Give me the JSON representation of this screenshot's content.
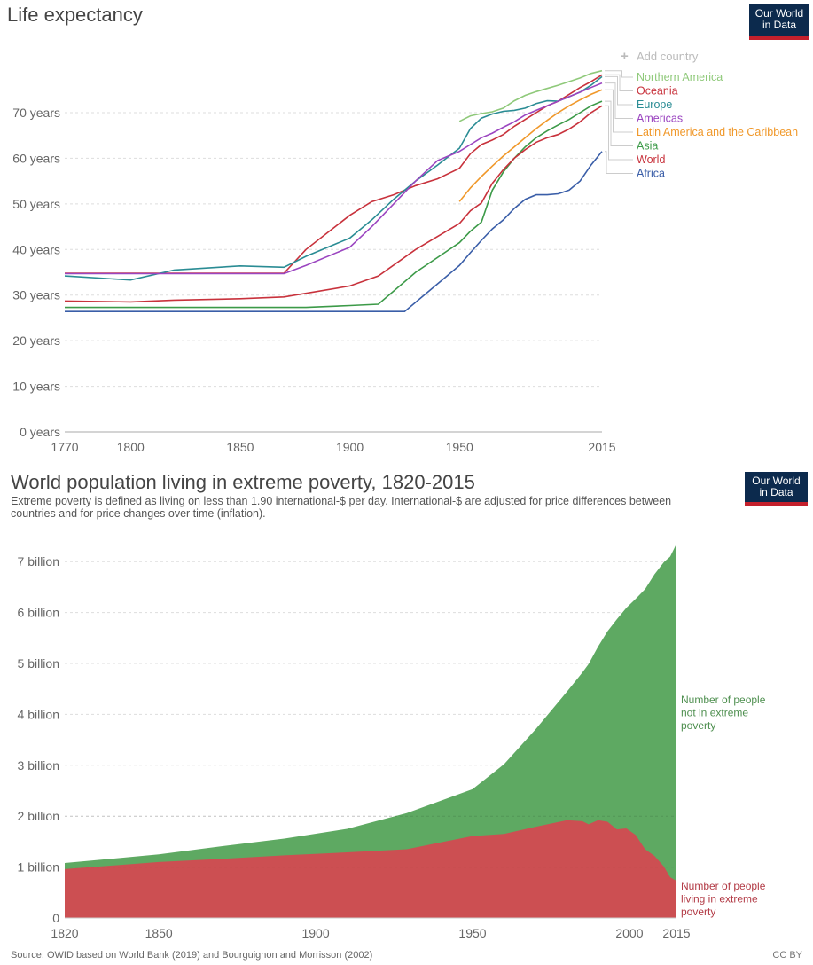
{
  "header": {
    "logo_line1": "Our World",
    "logo_line2": "in Data"
  },
  "add_country_label": "Add country",
  "source": "Source: OWID based on World Bank (2019) and Bourguignon and Morrisson (2002)",
  "license": "CC BY",
  "colors": {
    "logo_bg": "#0c2a4d",
    "logo_accent": "#c4202c",
    "poverty_red": "#cc4f52",
    "not_poverty_green": "#5ea962"
  },
  "chart_data": [
    {
      "type": "line",
      "title": "Life expectancy",
      "xlabel": "",
      "ylabel": "",
      "x_ticks": [
        1770,
        1800,
        1850,
        1900,
        1950,
        2015
      ],
      "x_tick_labels": [
        "1770",
        "1800",
        "1850",
        "1900",
        "1950",
        "2015"
      ],
      "y_ticks": [
        0,
        10,
        20,
        30,
        40,
        50,
        60,
        70
      ],
      "y_tick_labels": [
        "0 years",
        "10 years",
        "20 years",
        "30 years",
        "40 years",
        "50 years",
        "60 years",
        "70 years"
      ],
      "xlim": [
        1770,
        2015
      ],
      "ylim": [
        0,
        70
      ],
      "grid": "horizontal-dashed",
      "legend": "right",
      "series": [
        {
          "name": "Northern America",
          "color": "#8fc97a",
          "points": [
            [
              1950,
              68.1
            ],
            [
              1955,
              69.3
            ],
            [
              1960,
              69.8
            ],
            [
              1965,
              70.2
            ],
            [
              1970,
              71
            ],
            [
              1975,
              72.6
            ],
            [
              1980,
              73.8
            ],
            [
              1985,
              74.6
            ],
            [
              1990,
              75.3
            ],
            [
              1995,
              76
            ],
            [
              2000,
              76.8
            ],
            [
              2005,
              77.6
            ],
            [
              2010,
              78.6
            ],
            [
              2015,
              79.2
            ]
          ]
        },
        {
          "name": "Oceania",
          "color": "#c8323c",
          "points": [
            [
              1770,
              34.8
            ],
            [
              1800,
              34.8
            ],
            [
              1850,
              34.8
            ],
            [
              1870,
              34.8
            ],
            [
              1880,
              40
            ],
            [
              1900,
              47.5
            ],
            [
              1910,
              50.5
            ],
            [
              1920,
              52
            ],
            [
              1930,
              54
            ],
            [
              1940,
              55.5
            ],
            [
              1950,
              57.8
            ],
            [
              1955,
              61
            ],
            [
              1960,
              63
            ],
            [
              1965,
              64
            ],
            [
              1970,
              65.2
            ],
            [
              1975,
              67
            ],
            [
              1980,
              68.5
            ],
            [
              1985,
              70
            ],
            [
              1990,
              71.5
            ],
            [
              1995,
              72.5
            ],
            [
              2000,
              74
            ],
            [
              2005,
              75.5
            ],
            [
              2010,
              76.8
            ],
            [
              2015,
              78.3
            ]
          ]
        },
        {
          "name": "Europe",
          "color": "#2a8c94",
          "points": [
            [
              1770,
              34.2
            ],
            [
              1800,
              33.3
            ],
            [
              1820,
              35.5
            ],
            [
              1850,
              36.4
            ],
            [
              1870,
              36.1
            ],
            [
              1880,
              38.5
            ],
            [
              1900,
              42.5
            ],
            [
              1910,
              46.5
            ],
            [
              1920,
              51
            ],
            [
              1930,
              55
            ],
            [
              1940,
              58.5
            ],
            [
              1950,
              62.2
            ],
            [
              1955,
              66.5
            ],
            [
              1960,
              68.8
            ],
            [
              1965,
              69.7
            ],
            [
              1970,
              70.3
            ],
            [
              1975,
              70.5
            ],
            [
              1980,
              71
            ],
            [
              1985,
              72
            ],
            [
              1990,
              72.6
            ],
            [
              1995,
              72.5
            ],
            [
              2000,
              73.5
            ],
            [
              2005,
              74.5
            ],
            [
              2010,
              76
            ],
            [
              2015,
              77.9
            ]
          ]
        },
        {
          "name": "Americas",
          "color": "#9b45c0",
          "points": [
            [
              1770,
              34.7
            ],
            [
              1800,
              34.7
            ],
            [
              1850,
              34.7
            ],
            [
              1870,
              34.7
            ],
            [
              1880,
              36.5
            ],
            [
              1900,
              40.5
            ],
            [
              1910,
              45
            ],
            [
              1920,
              50
            ],
            [
              1930,
              55
            ],
            [
              1940,
              59.5
            ],
            [
              1950,
              61.5
            ],
            [
              1955,
              63
            ],
            [
              1960,
              64.5
            ],
            [
              1965,
              65.5
            ],
            [
              1970,
              66.8
            ],
            [
              1975,
              68
            ],
            [
              1980,
              69.5
            ],
            [
              1985,
              70.5
            ],
            [
              1990,
              71.5
            ],
            [
              1995,
              72.5
            ],
            [
              2000,
              73.5
            ],
            [
              2005,
              74.5
            ],
            [
              2010,
              75.5
            ],
            [
              2015,
              76.5
            ]
          ]
        },
        {
          "name": "Latin America and the Caribbean",
          "color": "#f0982a",
          "points": [
            [
              1950,
              50.5
            ],
            [
              1955,
              53.5
            ],
            [
              1960,
              56
            ],
            [
              1965,
              58.3
            ],
            [
              1970,
              60.5
            ],
            [
              1975,
              62.5
            ],
            [
              1980,
              64.5
            ],
            [
              1985,
              66.5
            ],
            [
              1990,
              68.3
            ],
            [
              1995,
              70
            ],
            [
              2000,
              71.5
            ],
            [
              2005,
              72.8
            ],
            [
              2010,
              74
            ],
            [
              2015,
              75
            ]
          ]
        },
        {
          "name": "Asia",
          "color": "#3c9a48",
          "points": [
            [
              1770,
              27.3
            ],
            [
              1800,
              27.3
            ],
            [
              1850,
              27.3
            ],
            [
              1880,
              27.3
            ],
            [
              1900,
              27.7
            ],
            [
              1913,
              28
            ],
            [
              1930,
              35
            ],
            [
              1950,
              41.5
            ],
            [
              1955,
              44
            ],
            [
              1960,
              46
            ],
            [
              1965,
              53
            ],
            [
              1970,
              57
            ],
            [
              1975,
              60
            ],
            [
              1980,
              62.5
            ],
            [
              1985,
              64.5
            ],
            [
              1990,
              66
            ],
            [
              1995,
              67.3
            ],
            [
              2000,
              68.5
            ],
            [
              2005,
              70
            ],
            [
              2010,
              71.5
            ],
            [
              2015,
              72.5
            ]
          ]
        },
        {
          "name": "World",
          "color": "#c8323c",
          "points": [
            [
              1770,
              28.7
            ],
            [
              1800,
              28.5
            ],
            [
              1820,
              28.9
            ],
            [
              1850,
              29.2
            ],
            [
              1870,
              29.6
            ],
            [
              1900,
              32
            ],
            [
              1913,
              34.2
            ],
            [
              1930,
              40
            ],
            [
              1950,
              45.7
            ],
            [
              1955,
              48.5
            ],
            [
              1960,
              50.2
            ],
            [
              1965,
              54.5
            ],
            [
              1970,
              57.5
            ],
            [
              1975,
              60
            ],
            [
              1980,
              61.9
            ],
            [
              1985,
              63.5
            ],
            [
              1990,
              64.5
            ],
            [
              1995,
              65.2
            ],
            [
              2000,
              66.4
            ],
            [
              2005,
              68
            ],
            [
              2010,
              70
            ],
            [
              2015,
              71.5
            ]
          ]
        },
        {
          "name": "Africa",
          "color": "#3a5ea8",
          "points": [
            [
              1770,
              26.4
            ],
            [
              1800,
              26.4
            ],
            [
              1850,
              26.4
            ],
            [
              1900,
              26.4
            ],
            [
              1913,
              26.4
            ],
            [
              1925,
              26.4
            ],
            [
              1950,
              36.5
            ],
            [
              1955,
              39.3
            ],
            [
              1960,
              42
            ],
            [
              1965,
              44.5
            ],
            [
              1970,
              46.5
            ],
            [
              1975,
              49
            ],
            [
              1980,
              51
            ],
            [
              1985,
              52
            ],
            [
              1990,
              52
            ],
            [
              1995,
              52.2
            ],
            [
              2000,
              53
            ],
            [
              2005,
              55
            ],
            [
              2010,
              58.5
            ],
            [
              2015,
              61.5
            ]
          ]
        }
      ]
    },
    {
      "type": "area",
      "stacked": true,
      "title": "World population living in extreme poverty, 1820-2015",
      "subtitle": "Extreme poverty is defined as living on less than 1.90 international-$ per day. International-$ are adjusted for price differences between countries and for price changes over time (inflation).",
      "xlabel": "",
      "ylabel": "",
      "x_ticks": [
        1820,
        1850,
        1900,
        1950,
        2000,
        2015
      ],
      "x_tick_labels": [
        "1820",
        "1850",
        "1900",
        "1950",
        "2000",
        "2015"
      ],
      "y_ticks": [
        0,
        1,
        2,
        3,
        4,
        5,
        6,
        7
      ],
      "y_tick_labels": [
        "0",
        "1 billion",
        "2 billion",
        "3 billion",
        "4 billion",
        "5 billion",
        "6 billion",
        "7 billion"
      ],
      "xlim": [
        1820,
        2015
      ],
      "ylim": [
        0,
        7.4
      ],
      "units": "billion",
      "grid": "horizontal-dashed",
      "legend": "right (inline labels)",
      "x": [
        1820,
        1850,
        1870,
        1890,
        1910,
        1929,
        1950,
        1960,
        1970,
        1980,
        1985,
        1987,
        1990,
        1993,
        1996,
        1999,
        2002,
        2005,
        2008,
        2011,
        2013,
        2015
      ],
      "series": [
        {
          "name": "Number of people living in extreme poverty",
          "label_lines": [
            "Number of people",
            "living in extreme",
            "poverty"
          ],
          "color": "#cc4f52",
          "values": [
            0.96,
            1.1,
            1.16,
            1.23,
            1.29,
            1.35,
            1.61,
            1.65,
            1.79,
            1.92,
            1.9,
            1.84,
            1.92,
            1.89,
            1.74,
            1.76,
            1.63,
            1.35,
            1.22,
            1.01,
            0.8,
            0.73
          ]
        },
        {
          "name": "Number of people not in extreme poverty",
          "label_lines": [
            "Number of people",
            "not in extreme",
            "poverty"
          ],
          "color": "#5ea962",
          "values": [
            0.12,
            0.15,
            0.25,
            0.33,
            0.46,
            0.71,
            0.92,
            1.37,
            1.91,
            2.52,
            2.92,
            3.15,
            3.41,
            3.74,
            4.13,
            4.33,
            4.64,
            5.11,
            5.53,
            5.98,
            6.3,
            6.62
          ]
        }
      ]
    }
  ]
}
